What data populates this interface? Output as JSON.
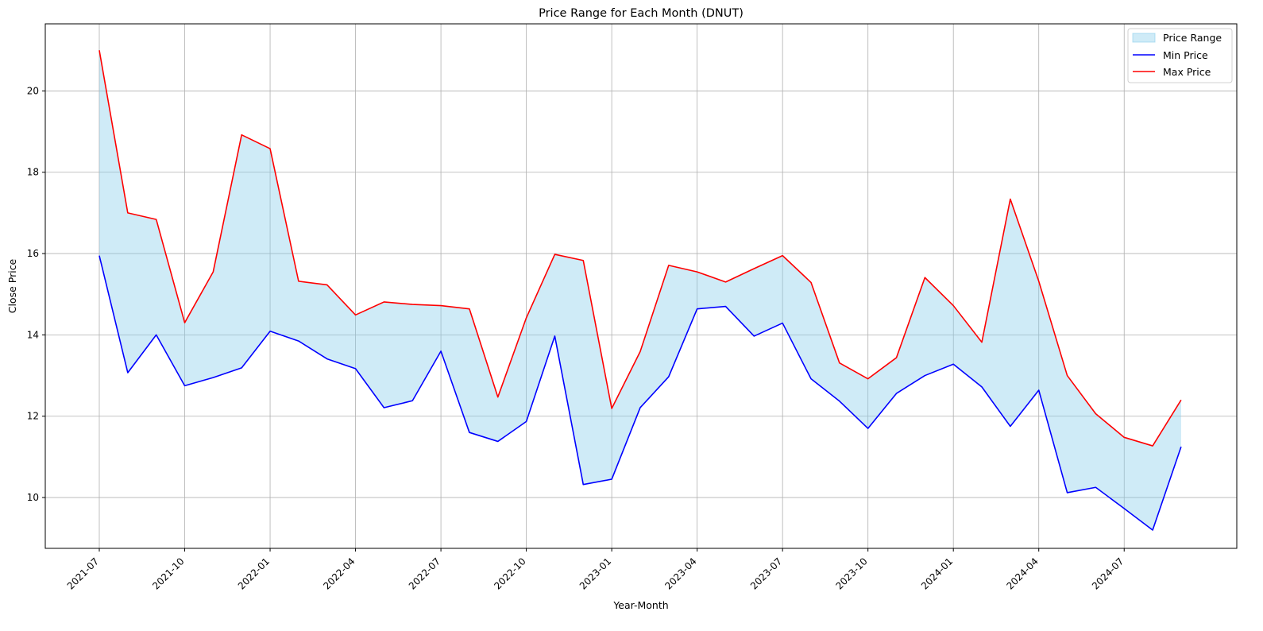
{
  "chart_data": {
    "type": "line",
    "title": "Price Range for Each Month (DNUT)",
    "xlabel": "Year-Month",
    "ylabel": "Close Price",
    "x": [
      "2021-07",
      "2021-08",
      "2021-09",
      "2021-10",
      "2021-11",
      "2021-12",
      "2022-01",
      "2022-02",
      "2022-03",
      "2022-04",
      "2022-05",
      "2022-06",
      "2022-07",
      "2022-08",
      "2022-09",
      "2022-10",
      "2022-11",
      "2022-12",
      "2023-01",
      "2023-02",
      "2023-03",
      "2023-04",
      "2023-05",
      "2023-06",
      "2023-07",
      "2023-08",
      "2023-09",
      "2023-10",
      "2023-11",
      "2023-12",
      "2024-01",
      "2024-02",
      "2024-03",
      "2024-04",
      "2024-05",
      "2024-06",
      "2024-07",
      "2024-08",
      "2024-09"
    ],
    "x_ticks": [
      "2021-07",
      "2021-10",
      "2022-01",
      "2022-04",
      "2022-07",
      "2022-10",
      "2023-01",
      "2023-04",
      "2023-07",
      "2023-10",
      "2024-01",
      "2024-04",
      "2024-07"
    ],
    "y_ticks": [
      10,
      12,
      14,
      16,
      18,
      20
    ],
    "ylim": [
      8.75,
      21.65
    ],
    "grid": true,
    "legend_position": "top-right",
    "series": [
      {
        "name": "Price Range",
        "kind": "fill_between",
        "color": "#87ceeb"
      },
      {
        "name": "Min Price",
        "kind": "line",
        "color": "#0000ff",
        "values": [
          15.95,
          13.07,
          14.0,
          12.75,
          12.95,
          13.19,
          14.09,
          13.85,
          13.41,
          13.17,
          12.21,
          12.38,
          13.6,
          11.6,
          11.38,
          11.87,
          13.97,
          10.32,
          10.45,
          12.21,
          12.97,
          14.64,
          14.7,
          13.97,
          14.29,
          12.92,
          12.37,
          11.7,
          12.56,
          13.0,
          13.28,
          12.72,
          11.75,
          12.64,
          10.12,
          10.25,
          9.73,
          9.2,
          11.25
        ]
      },
      {
        "name": "Max Price",
        "kind": "line",
        "color": "#ff0000",
        "values": [
          21.0,
          17.0,
          16.84,
          14.3,
          15.55,
          18.92,
          18.58,
          15.32,
          15.23,
          14.49,
          14.81,
          14.75,
          14.72,
          14.64,
          12.47,
          14.42,
          15.98,
          15.83,
          12.19,
          13.59,
          15.71,
          15.55,
          15.3,
          15.63,
          15.95,
          15.29,
          13.31,
          12.92,
          13.44,
          15.41,
          14.72,
          13.82,
          17.34,
          15.32,
          13.0,
          12.06,
          11.48,
          11.27,
          12.4
        ]
      }
    ]
  }
}
